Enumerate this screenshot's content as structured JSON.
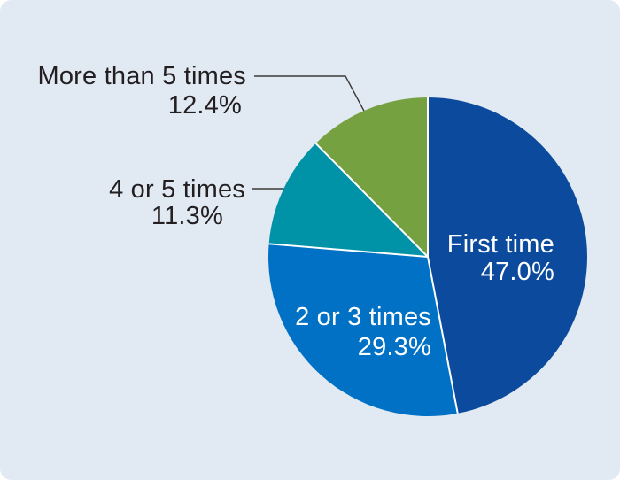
{
  "page": {
    "background": "#ffffff",
    "panel_background": "#e1e9f3"
  },
  "chart_data": {
    "type": "pie",
    "title": "",
    "legend_position": "none",
    "start_angle_deg": 0,
    "direction": "clockwise",
    "border_color": "#ffffff",
    "leader_line_color": "#3a3a3a",
    "text_color": "#231f20",
    "slices": [
      {
        "label": "First time",
        "value": 47.0,
        "pct_label": "47.0%",
        "color": "#0b4a9c",
        "label_color": "#ffffff",
        "label_placement": "inside"
      },
      {
        "label": "2 or 3 times",
        "value": 29.3,
        "pct_label": "29.3%",
        "color": "#0071c5",
        "label_color": "#ffffff",
        "label_placement": "inside"
      },
      {
        "label": "4 or 5 times",
        "value": 11.3,
        "pct_label": "11.3%",
        "color": "#0093a8",
        "label_color": "#231f20",
        "label_placement": "outside"
      },
      {
        "label": "More than 5 times",
        "value": 12.4,
        "pct_label": "12.4%",
        "color": "#76a140",
        "label_color": "#231f20",
        "label_placement": "outside"
      }
    ]
  }
}
